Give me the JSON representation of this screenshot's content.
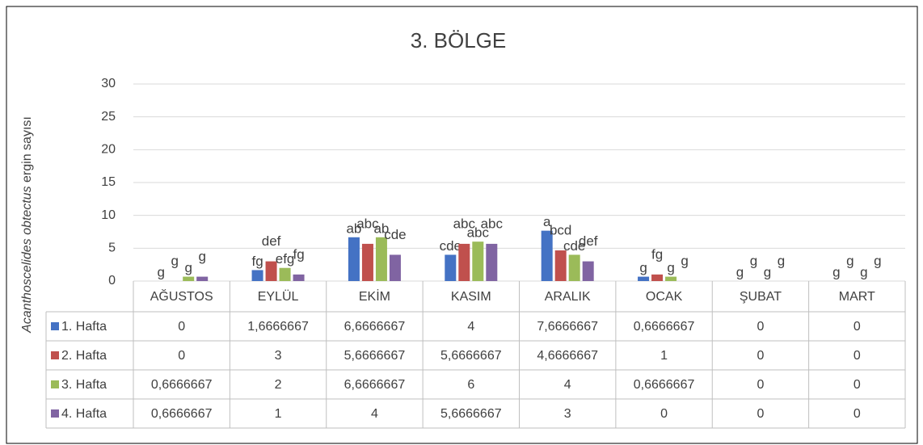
{
  "chart_data": {
    "type": "bar",
    "title": "3. BÖLGE",
    "y_label": [
      "Acanthoscelides obtectus",
      " ergin sayısı"
    ],
    "categories": [
      "AĞUSTOS",
      "EYLÜL",
      "EKİM",
      "KASIM",
      "ARALIK",
      "OCAK",
      "ŞUBAT",
      "MART"
    ],
    "ylim": [
      0,
      30
    ],
    "yticks": [
      0,
      5,
      10,
      15,
      20,
      25,
      30
    ],
    "grid": true,
    "series": [
      {
        "name": "1. Hafta",
        "color": "#4472c4",
        "values": [
          0,
          1.6666667,
          6.6666667,
          4,
          7.6666667,
          0.6666667,
          0,
          0
        ],
        "value_labels": [
          "0",
          "1,6666667",
          "6,6666667",
          "4",
          "7,6666667",
          "0,6666667",
          "0",
          "0"
        ],
        "letters": [
          "g",
          "fg",
          "ab",
          "cde",
          "a",
          "g",
          "g",
          "g"
        ]
      },
      {
        "name": "2. Hafta",
        "color": "#c0504d",
        "values": [
          0,
          3,
          5.6666667,
          5.6666667,
          4.6666667,
          1,
          0,
          0
        ],
        "value_labels": [
          "0",
          "3",
          "5,6666667",
          "5,6666667",
          "4,6666667",
          "1",
          "0",
          "0"
        ],
        "letters": [
          "g",
          "def",
          "abc",
          "abc",
          "bcd",
          "fg",
          "g",
          "g"
        ]
      },
      {
        "name": "3. Hafta",
        "color": "#9bbb59",
        "values": [
          0.6666667,
          2,
          6.6666667,
          6,
          4,
          0.6666667,
          0,
          0
        ],
        "value_labels": [
          "0,6666667",
          "2",
          "6,6666667",
          "6",
          "4",
          "0,6666667",
          "0",
          "0"
        ],
        "letters": [
          "g",
          "efg",
          "ab",
          "abc",
          "cde",
          "g",
          "g",
          "g"
        ]
      },
      {
        "name": "4. Hafta",
        "color": "#8064a2",
        "values": [
          0.6666667,
          1,
          4,
          5.6666667,
          3,
          0,
          0,
          0
        ],
        "value_labels": [
          "0,6666667",
          "1",
          "4",
          "5,6666667",
          "3",
          "0",
          "0",
          "0"
        ],
        "letters": [
          "g",
          "fg",
          "cde",
          "abc",
          "def",
          "g",
          "g",
          "g"
        ]
      }
    ]
  }
}
